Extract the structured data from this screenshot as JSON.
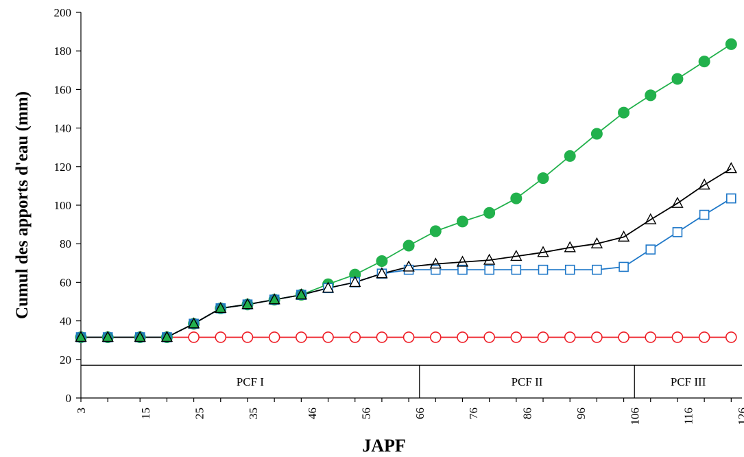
{
  "chart_data": {
    "type": "line",
    "xlabel": "JAPF",
    "ylabel": "Cumul des apports d'eau (mm)",
    "ylim": [
      0,
      200
    ],
    "xlim": [
      3,
      126
    ],
    "y_ticks": [
      0,
      20,
      40,
      60,
      80,
      100,
      120,
      140,
      160,
      180,
      200
    ],
    "x_tick_labels": [
      "3",
      "15",
      "25",
      "35",
      "46",
      "56",
      "66",
      "76",
      "86",
      "96",
      "106",
      "116",
      "126"
    ],
    "x": [
      3,
      8,
      14,
      19,
      24,
      29,
      34,
      39,
      44,
      49,
      54,
      59,
      64,
      69,
      74,
      79,
      84,
      89,
      94,
      99,
      104,
      109,
      114,
      119,
      124
    ],
    "grid": false,
    "legend": "none",
    "series": [
      {
        "values": [
          31.5,
          31.5,
          31.5,
          31.5,
          31.5,
          31.5,
          31.5,
          31.5,
          31.5,
          31.5,
          31.5,
          31.5,
          31.5,
          31.5,
          31.5,
          31.5,
          31.5,
          31.5,
          31.5,
          31.5,
          31.5,
          31.5,
          31.5,
          31.5,
          31.5
        ],
        "color": "#ee1c25",
        "marker": "circle-open"
      },
      {
        "values": [
          31.5,
          31.5,
          31.5,
          31.5,
          38.5,
          46.5,
          48.5,
          51,
          53.5,
          59,
          64,
          71,
          79,
          86.5,
          91.5,
          96,
          103.5,
          114,
          125.5,
          137,
          148,
          157,
          165.5,
          174.5,
          183.5
        ],
        "color": "#22b14c",
        "marker": "circle-filled"
      },
      {
        "values": [
          31.5,
          31.5,
          31.5,
          31.5,
          38.5,
          46.5,
          48.5,
          51,
          53.5,
          57,
          60,
          64.5,
          66.5,
          66.5,
          66.5,
          66.5,
          66.5,
          66.5,
          66.5,
          66.5,
          68,
          77,
          86,
          95,
          103.5
        ],
        "color": "#1f78c8",
        "marker": "square-open"
      },
      {
        "values": [
          31.5,
          31.5,
          31.5,
          31.5,
          38.5,
          46.5,
          48.5,
          51,
          53.5,
          57,
          60,
          64.5,
          68,
          69.5,
          70.5,
          71.5,
          73.5,
          75.5,
          78,
          80,
          83.5,
          92.5,
          101,
          110.5,
          119
        ],
        "color": "#000000",
        "marker": "triangle-open"
      }
    ],
    "phases": [
      {
        "label": "PCF I",
        "start": 3,
        "end": 66
      },
      {
        "label": "PCF II",
        "start": 66,
        "end": 106
      },
      {
        "label": "PCF III",
        "start": 106,
        "end": 126
      }
    ],
    "phase_band": [
      0,
      17
    ],
    "overlay_fill": "#1f8a8f"
  }
}
